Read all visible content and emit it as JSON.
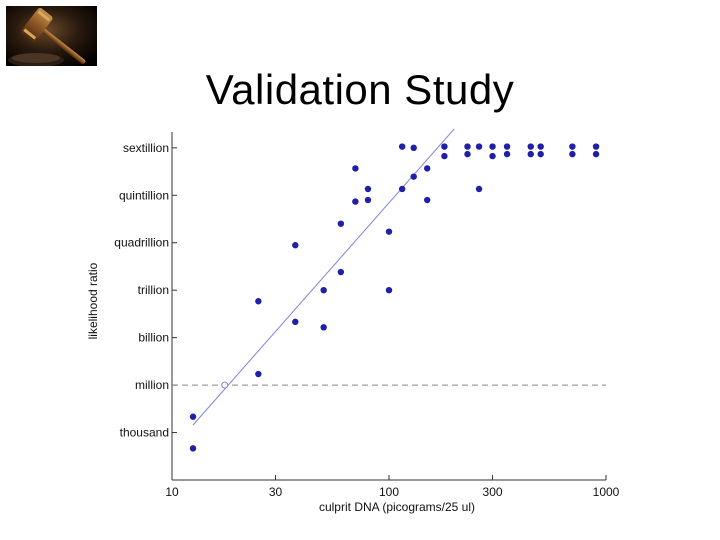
{
  "slide": {
    "title": "Validation Study",
    "logo_icon": "gavel-icon"
  },
  "chart_data": {
    "type": "scatter",
    "title": "",
    "xlabel": "culprit DNA (picograms/25 ul)",
    "ylabel": "likelihood ratio",
    "x_scale": "log",
    "xlim": [
      10,
      1000
    ],
    "x_ticks": [
      10,
      30,
      100,
      300,
      1000
    ],
    "x_tick_labels": [
      "10",
      "30",
      "100",
      "300",
      "1000"
    ],
    "y_scale": "log",
    "ylim": [
      1,
      1e+22
    ],
    "y_ticks": [
      1000.0,
      1000000.0,
      1000000000.0,
      1000000000000.0,
      1000000000000000.0,
      1e+18,
      1e+21
    ],
    "y_tick_labels": [
      "thousand",
      "million",
      "billion",
      "trillion",
      "quadrillion",
      "quintillion",
      "sextillion"
    ],
    "grid": false,
    "series": [
      {
        "color": "#1f1fa8",
        "points": [
          [
            12.5,
            100.0
          ],
          [
            12.5,
            10000.0
          ],
          [
            25,
            5000000.0
          ],
          [
            25,
            200000000000.0
          ],
          [
            37,
            700000000000000.0
          ],
          [
            37,
            10000000000.0
          ],
          [
            50,
            1000000000000.0
          ],
          [
            50,
            4500000000.0
          ],
          [
            60,
            14000000000000.0
          ],
          [
            60,
            1.6e+16
          ],
          [
            70,
            5e+19
          ],
          [
            70,
            4e+17
          ],
          [
            80,
            2.5e+18
          ],
          [
            80,
            5e+17
          ],
          [
            100,
            5000000000000000.0
          ],
          [
            100,
            1000000000000.0
          ],
          [
            115,
            1.2e+21
          ],
          [
            115,
            2.5e+18
          ],
          [
            130,
            1e+21
          ],
          [
            130,
            1.5e+19
          ],
          [
            150,
            5e+19
          ],
          [
            150,
            5e+17
          ],
          [
            180,
            1.2e+21
          ],
          [
            180,
            3e+20
          ],
          [
            230,
            1.2e+21
          ],
          [
            230,
            4e+20
          ],
          [
            260,
            1.2e+21
          ],
          [
            260,
            2.5e+18
          ],
          [
            300,
            1.2e+21
          ],
          [
            300,
            3e+20
          ],
          [
            350,
            1.2e+21
          ],
          [
            350,
            4e+20
          ],
          [
            450,
            1.2e+21
          ],
          [
            450,
            4e+20
          ],
          [
            500,
            1.2e+21
          ],
          [
            500,
            4e+20
          ],
          [
            700,
            1.2e+21
          ],
          [
            700,
            4e+20
          ],
          [
            900,
            1.2e+21
          ],
          [
            900,
            4e+20
          ]
        ]
      }
    ],
    "fit_line": {
      "color": "#8080dd",
      "points": [
        [
          12.5,
          3000.0
        ],
        [
          200,
          1.6e+22
        ]
      ]
    },
    "threshold_line": {
      "y": 1000000.0,
      "style": "dashed",
      "color": "#888888"
    },
    "threshold_marker": {
      "x": 17.5,
      "y": 1000000.0
    }
  }
}
